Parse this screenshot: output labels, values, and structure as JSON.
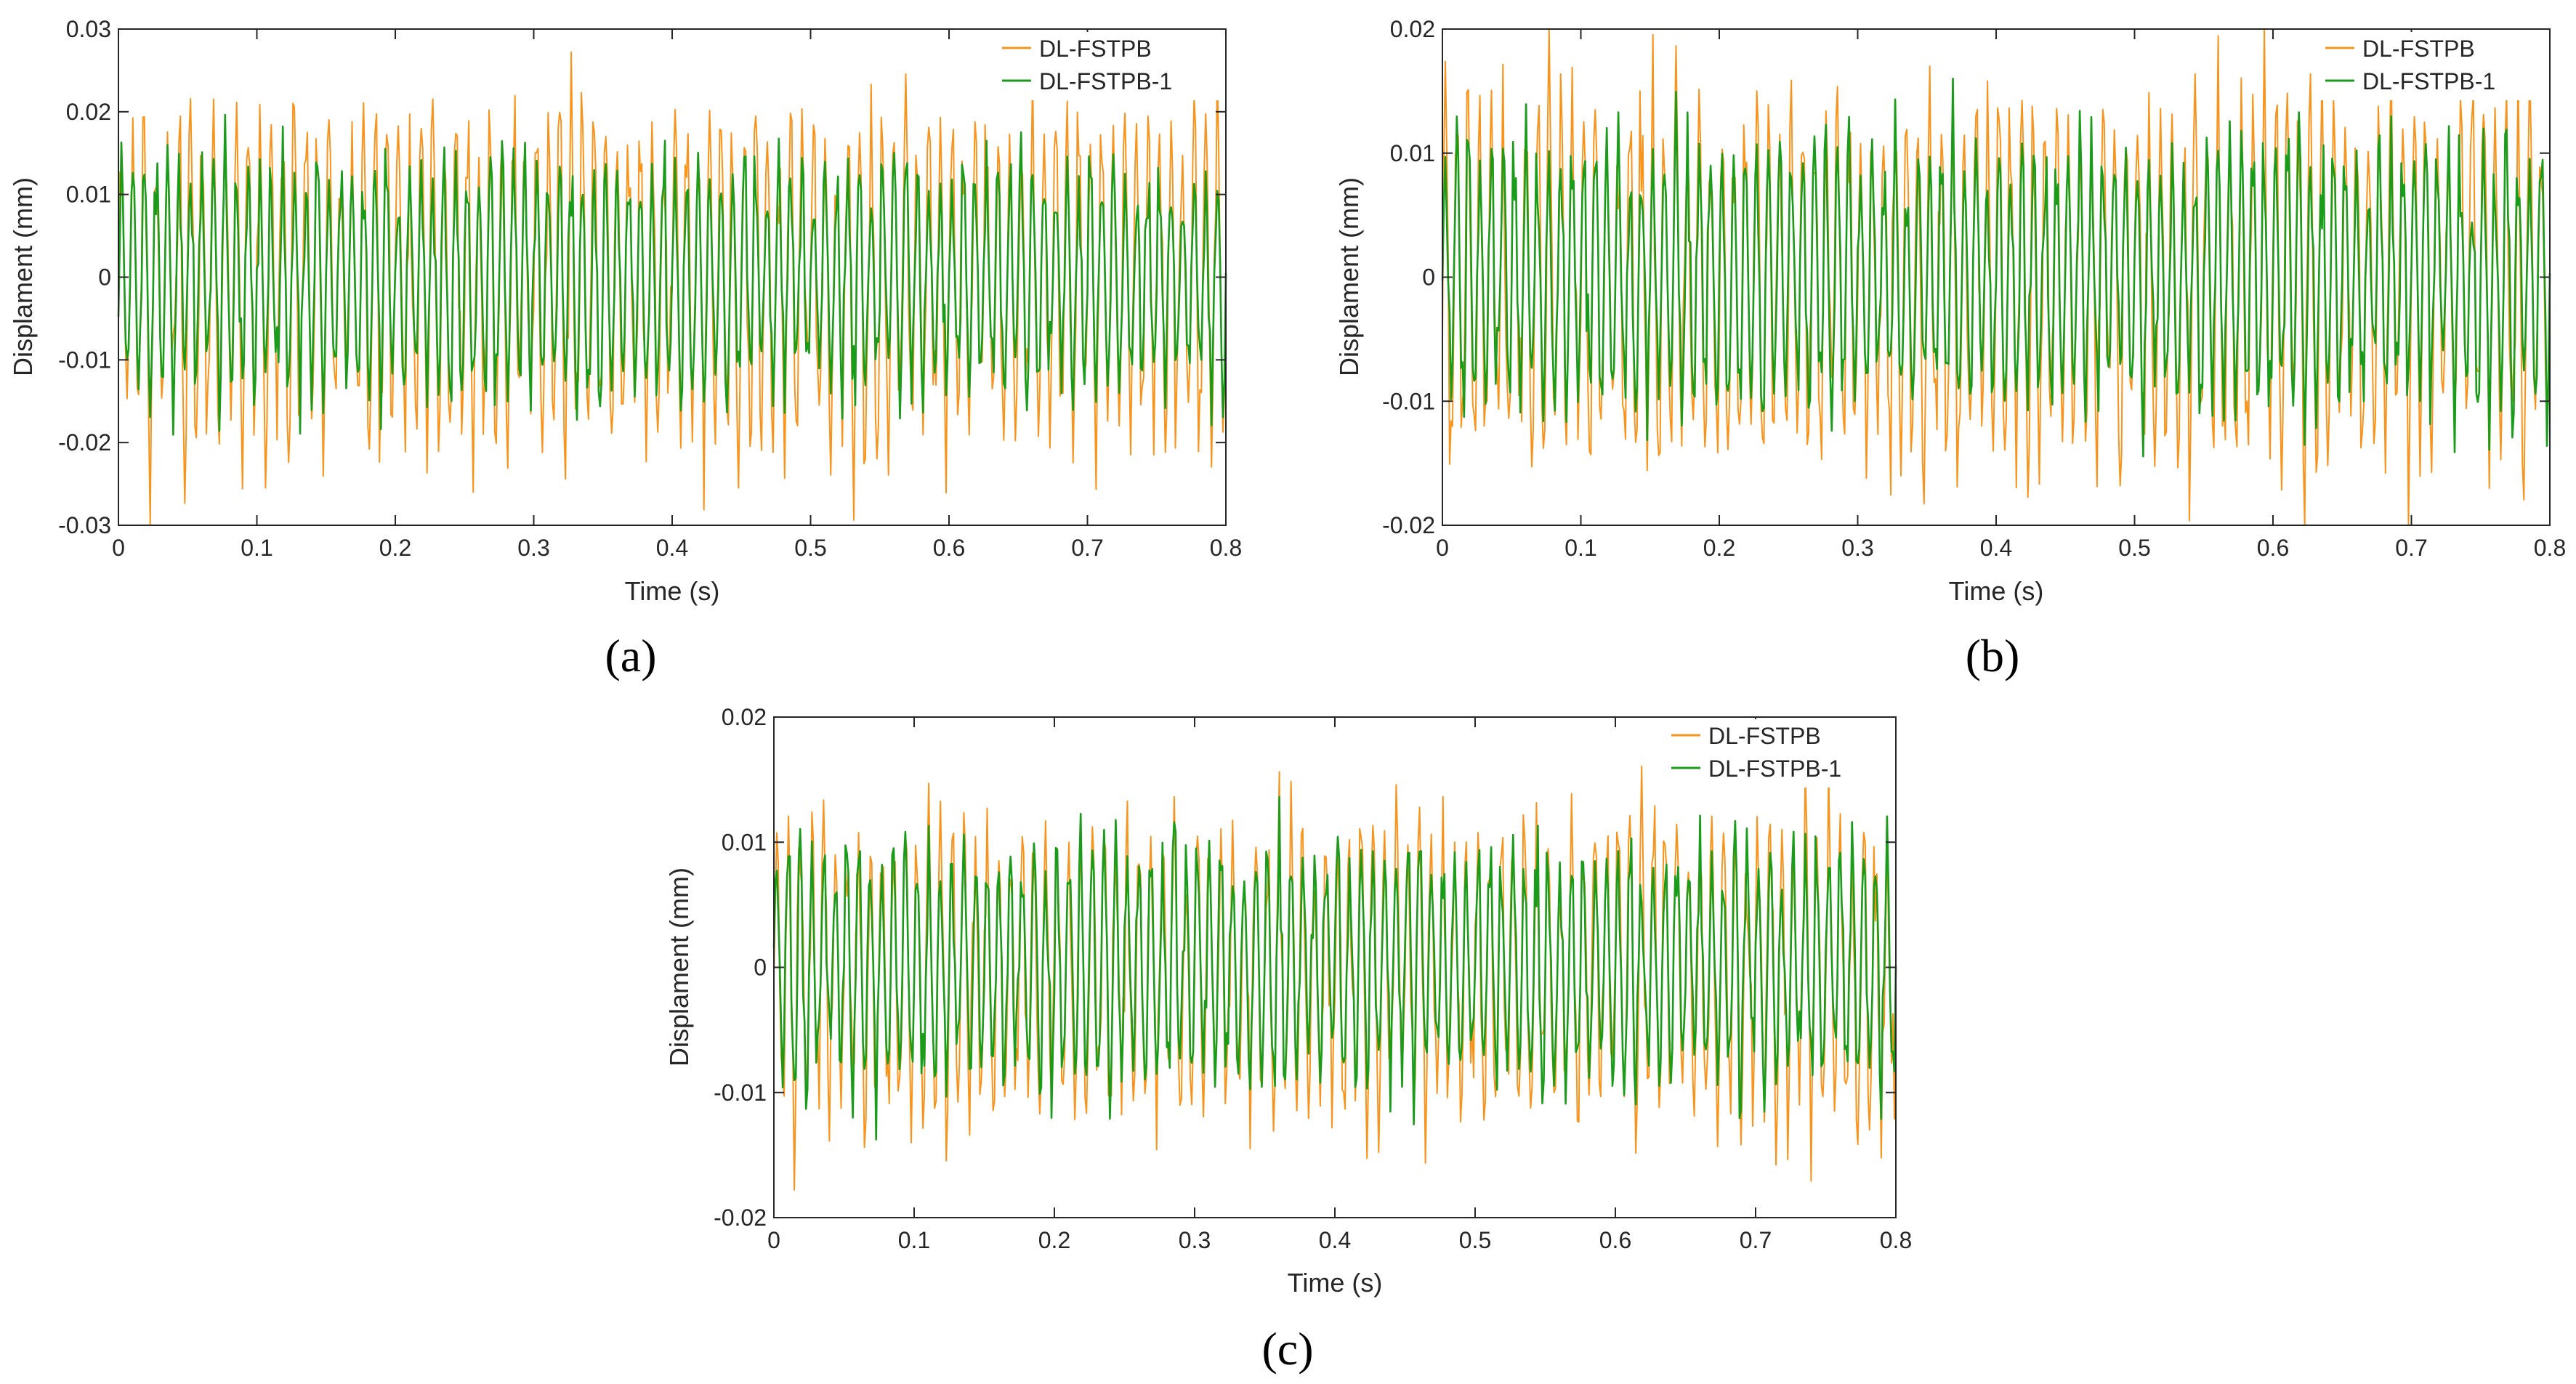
{
  "figure": {
    "panel_letters": [
      "(a)",
      "(b)",
      "(c)"
    ]
  },
  "colors": {
    "dl_fstpb": "#F7941D",
    "dl_fstpb_1": "#1A9C1A",
    "axis": "#262626",
    "background": "#FFFFFF"
  },
  "chart_data": [
    {
      "type": "line",
      "panel": "(a)",
      "title": "",
      "xlabel": "Time (s)",
      "ylabel": "Displament (mm)",
      "xlim": [
        0,
        0.8
      ],
      "ylim": [
        -0.03,
        0.03
      ],
      "xticks": [
        0,
        0.1,
        0.2,
        0.3,
        0.4,
        0.5,
        0.6,
        0.7,
        0.8
      ],
      "xtick_labels": [
        "0",
        "0.1",
        "0.2",
        "0.3",
        "0.4",
        "0.5",
        "0.6",
        "0.7",
        "0.8"
      ],
      "yticks": [
        -0.03,
        -0.02,
        -0.01,
        0,
        0.01,
        0.02,
        0.03
      ],
      "ytick_labels": [
        "-0.03",
        "-0.02",
        "-0.01",
        "0",
        "0.01",
        "0.02",
        "0.03"
      ],
      "grid": false,
      "legend_position": "top-right",
      "series": [
        {
          "name": "DL-FSTPB",
          "color_key": "dl_fstpb",
          "amplitude": 0.025,
          "peak_min": 0.019,
          "trough": -0.025,
          "description": "dense oscillation about 0 between roughly -0.026 and 0.026 mm"
        },
        {
          "name": "DL-FSTPB-1",
          "color_key": "dl_fstpb_1",
          "amplitude": 0.018,
          "peak_min": 0.013,
          "trough": -0.019,
          "description": "dense oscillation about 0 between roughly -0.02 and 0.018 mm"
        }
      ]
    },
    {
      "type": "line",
      "panel": "(b)",
      "title": "",
      "xlabel": "Time (s)",
      "ylabel": "Displament (mm)",
      "xlim": [
        0,
        0.8
      ],
      "ylim": [
        -0.02,
        0.02
      ],
      "xticks": [
        0,
        0.1,
        0.2,
        0.3,
        0.4,
        0.5,
        0.6,
        0.7,
        0.8
      ],
      "xtick_labels": [
        "0",
        "0.1",
        "0.2",
        "0.3",
        "0.4",
        "0.5",
        "0.6",
        "0.7",
        "0.8"
      ],
      "yticks": [
        -0.02,
        -0.01,
        0,
        0.01,
        0.02
      ],
      "ytick_labels": [
        "-0.02",
        "-0.01",
        "0",
        "0.01",
        "0.02"
      ],
      "grid": false,
      "legend_position": "top-right",
      "series": [
        {
          "name": "DL-FSTPB",
          "color_key": "dl_fstpb",
          "amplitude": 0.018,
          "peak_min": 0.013,
          "trough": -0.019,
          "description": "dense oscillation about 0 between roughly -0.02 and 0.018 mm"
        },
        {
          "name": "DL-FSTPB-1",
          "color_key": "dl_fstpb_1",
          "amplitude": 0.0135,
          "peak_min": 0.011,
          "trough": -0.0135,
          "description": "dense oscillation about 0 between roughly -0.014 and 0.014 mm"
        }
      ]
    },
    {
      "type": "line",
      "panel": "(c)",
      "title": "",
      "xlabel": "Time (s)",
      "ylabel": "Displament (mm)",
      "xlim": [
        0,
        0.8
      ],
      "ylim": [
        -0.02,
        0.02
      ],
      "xticks": [
        0,
        0.1,
        0.2,
        0.3,
        0.4,
        0.5,
        0.6,
        0.7,
        0.8
      ],
      "xtick_labels": [
        "0",
        "0.1",
        "0.2",
        "0.3",
        "0.4",
        "0.5",
        "0.6",
        "0.7",
        "0.8"
      ],
      "yticks": [
        -0.02,
        -0.01,
        0,
        0.01,
        0.02
      ],
      "ytick_labels": [
        "-0.02",
        "-0.01",
        "0",
        "0.01",
        "0.02"
      ],
      "grid": false,
      "legend_position": "top-right",
      "series": [
        {
          "name": "DL-FSTPB",
          "color_key": "dl_fstpb",
          "amplitude": 0.0145,
          "peak_min": 0.011,
          "trough": -0.0155,
          "description": "dense oscillation about 0 between roughly -0.016 and 0.016 mm"
        },
        {
          "name": "DL-FSTPB-1",
          "color_key": "dl_fstpb_1",
          "amplitude": 0.012,
          "peak_min": 0.0105,
          "trough": -0.012,
          "description": "dense oscillation about 0 between roughly -0.012 and 0.012 mm"
        }
      ]
    }
  ]
}
